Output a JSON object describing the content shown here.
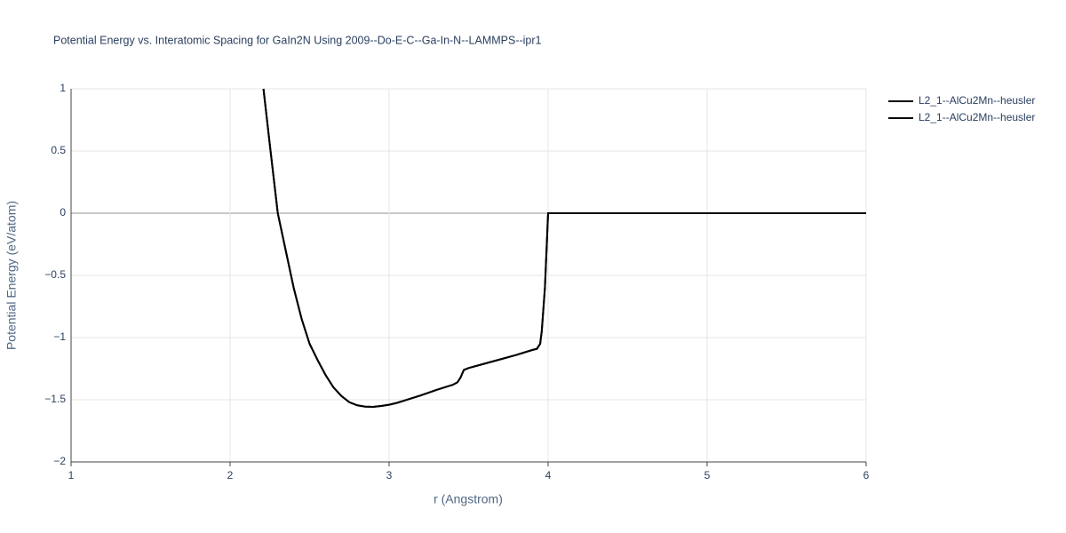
{
  "chart_data": {
    "type": "line",
    "title": "Potential Energy vs. Interatomic Spacing for GaIn2N Using 2009--Do-E-C--Ga-In-N--LAMMPS--ipr1",
    "x_label": "r (Angstrom)",
    "y_label": "Potential Energy (eV/atom)",
    "x": [
      2.21,
      2.25,
      2.3,
      2.35,
      2.4,
      2.45,
      2.5,
      2.55,
      2.6,
      2.65,
      2.7,
      2.75,
      2.8,
      2.85,
      2.9,
      2.95,
      3.0,
      3.05,
      3.1,
      3.2,
      3.3,
      3.4,
      3.43,
      3.45,
      3.47,
      3.5,
      3.6,
      3.7,
      3.8,
      3.9,
      3.93,
      3.95,
      3.96,
      3.98,
      4.0,
      4.5,
      5.0,
      5.5,
      6.0
    ],
    "series": [
      {
        "name": "L2_1--AlCu2Mn--heusler",
        "color": "#000000",
        "values": [
          1.0,
          0.55,
          0.0,
          -0.3,
          -0.6,
          -0.85,
          -1.05,
          -1.18,
          -1.3,
          -1.4,
          -1.47,
          -1.52,
          -1.545,
          -1.555,
          -1.557,
          -1.55,
          -1.54,
          -1.525,
          -1.505,
          -1.465,
          -1.42,
          -1.38,
          -1.36,
          -1.32,
          -1.26,
          -1.245,
          -1.21,
          -1.175,
          -1.14,
          -1.1,
          -1.09,
          -1.05,
          -0.95,
          -0.6,
          0.0,
          0.0,
          0.0,
          0.0,
          0.0
        ]
      },
      {
        "name": "L2_1--AlCu2Mn--heusler",
        "color": "#000000",
        "values": [
          1.0,
          0.55,
          0.0,
          -0.3,
          -0.6,
          -0.85,
          -1.05,
          -1.18,
          -1.3,
          -1.4,
          -1.47,
          -1.52,
          -1.545,
          -1.555,
          -1.557,
          -1.55,
          -1.54,
          -1.525,
          -1.505,
          -1.465,
          -1.42,
          -1.38,
          -1.36,
          -1.32,
          -1.26,
          -1.245,
          -1.21,
          -1.175,
          -1.14,
          -1.1,
          -1.09,
          -1.05,
          -0.95,
          -0.6,
          0.0,
          0.0,
          0.0,
          0.0,
          0.0
        ]
      }
    ],
    "xlim": [
      1,
      6
    ],
    "xticks": [
      1,
      2,
      3,
      4,
      5,
      6
    ],
    "ylim": [
      -2,
      1
    ],
    "yticks": [
      {
        "value": -2,
        "label": "−2"
      },
      {
        "value": -1.5,
        "label": "−1.5"
      },
      {
        "value": -1,
        "label": "−1"
      },
      {
        "value": -0.5,
        "label": "−0.5"
      },
      0,
      0.5,
      1
    ],
    "grid": true
  }
}
